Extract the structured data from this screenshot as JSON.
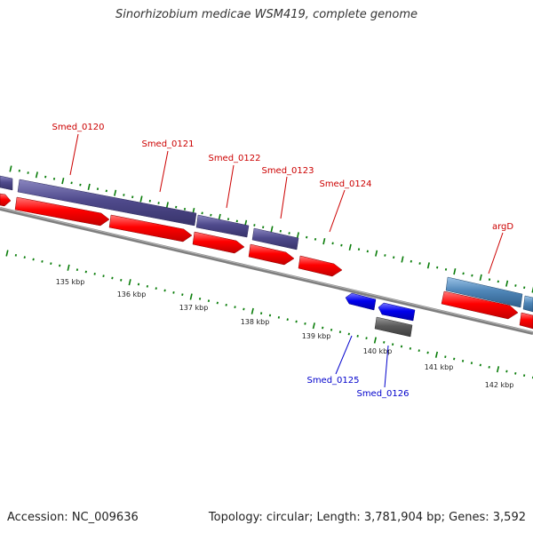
{
  "title": "Sinorhizobium medicae WSM419, complete genome",
  "footer": {
    "accession": "Accession: NC_009636",
    "summary": "Topology: circular; Length: 3,781,904 bp; Genes: 3,592"
  },
  "colors": {
    "cds_red": "#ff0000",
    "gene_purple": "#4f4a8c",
    "gene_lightblue": "#4f86b8",
    "cds_blue": "#0000ee",
    "gene_gray": "#5a5a5a",
    "backbone": "#7f7f7f",
    "tick_green": "#0a7d0a",
    "label_red": "#cc0000",
    "label_blue": "#0000cc"
  },
  "kbp_labels": [
    "135 kbp",
    "136 kbp",
    "137 kbp",
    "138 kbp",
    "139 kbp",
    "140 kbp",
    "141 kbp",
    "142 kbp"
  ],
  "gene_labels_forward": [
    "Smed_0120",
    "Smed_0121",
    "Smed_0122",
    "Smed_0123",
    "Smed_0124",
    "argD"
  ],
  "gene_labels_reverse": [
    "Smed_0125",
    "Smed_0126"
  ]
}
